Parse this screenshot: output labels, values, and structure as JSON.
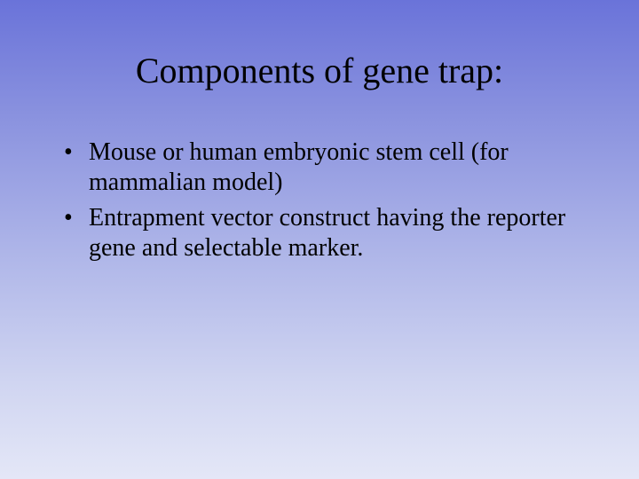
{
  "slide": {
    "title": "Components of gene trap:",
    "bullets": [
      "Mouse or human embryonic stem cell (for mammalian model)",
      "Entrapment vector construct having the reporter gene and selectable marker."
    ],
    "background_gradient": {
      "from": "#6a73d9",
      "to": "#e4e7f7",
      "direction": "top-to-bottom"
    },
    "title_fontsize": 40,
    "body_fontsize": 28,
    "font_family": "Times New Roman",
    "text_color": "#000000"
  }
}
